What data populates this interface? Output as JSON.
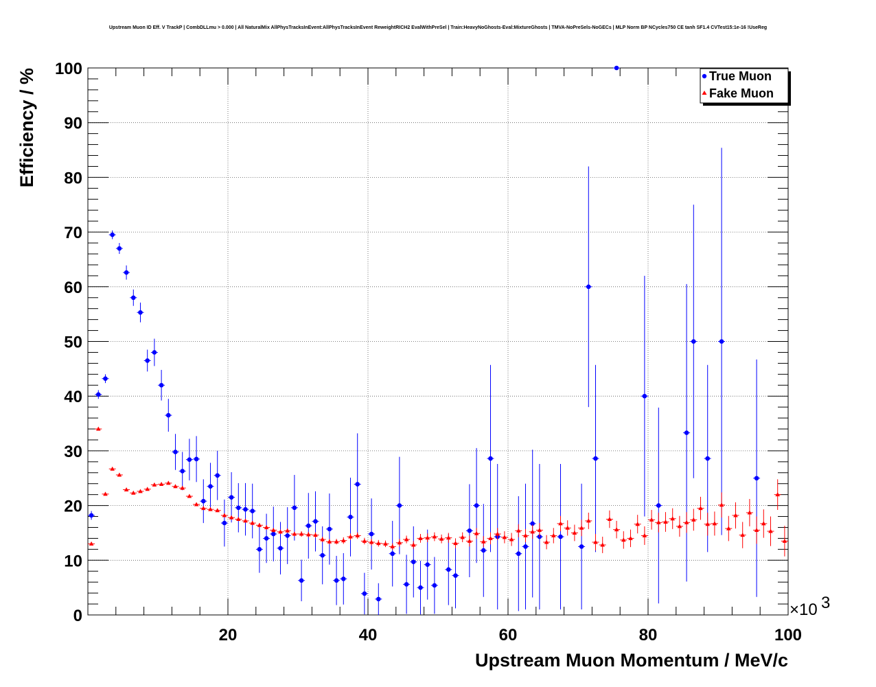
{
  "chart_data": {
    "type": "scatter",
    "title": "Upstream Muon ID Eff. V TrackP | CombDLLmu > 0.000 | All NaturalMix AllPhysTracksInEvent:AllPhysTracksInEvent ReweightRICH2 EvalWithPreSel | Train:HeavyNoGhosts-Eval:MixtureGhosts | TMVA-NoPreSels-NoGECs | MLP Norm BP NCycles750 CE tanh SF1.4 CVTest15:1e-16 !UseReg",
    "xlabel": "Upstream Muon Momentum / MeV/c",
    "ylabel": "Efficiency / %",
    "x_multiplier_label": "×10",
    "x_multiplier_exp": "3",
    "xlim": [
      0,
      100
    ],
    "ylim": [
      0,
      100
    ],
    "x_ticks": [
      20,
      40,
      60,
      80,
      100
    ],
    "y_ticks": [
      0,
      10,
      20,
      30,
      40,
      50,
      60,
      70,
      80,
      90,
      100
    ],
    "grid": true,
    "legend_position": "top-right",
    "series": [
      {
        "name": "True Muon",
        "color": "#0000ff",
        "marker": "circle",
        "points": [
          {
            "x": 0.5,
            "y": 18.2,
            "e": 0.8
          },
          {
            "x": 1.5,
            "y": 40.3,
            "e": 0.8
          },
          {
            "x": 2.5,
            "y": 43.2,
            "e": 0.8
          },
          {
            "x": 3.5,
            "y": 69.5,
            "e": 0.8
          },
          {
            "x": 4.5,
            "y": 67.0,
            "e": 1.0
          },
          {
            "x": 5.5,
            "y": 62.6,
            "e": 1.3
          },
          {
            "x": 6.5,
            "y": 58.0,
            "e": 1.5
          },
          {
            "x": 7.5,
            "y": 55.3,
            "e": 1.8
          },
          {
            "x": 8.5,
            "y": 46.5,
            "e": 2.0
          },
          {
            "x": 9.5,
            "y": 48.0,
            "e": 2.5
          },
          {
            "x": 10.5,
            "y": 42.0,
            "e": 2.8
          },
          {
            "x": 11.5,
            "y": 36.5,
            "e": 3.0
          },
          {
            "x": 12.5,
            "y": 29.8,
            "e": 3.3
          },
          {
            "x": 13.5,
            "y": 26.3,
            "e": 3.5
          },
          {
            "x": 14.5,
            "y": 28.4,
            "e": 3.8
          },
          {
            "x": 15.5,
            "y": 28.5,
            "e": 4.2
          },
          {
            "x": 16.5,
            "y": 20.8,
            "e": 4.0
          },
          {
            "x": 17.5,
            "y": 23.5,
            "e": 4.3
          },
          {
            "x": 18.5,
            "y": 25.5,
            "e": 4.5
          },
          {
            "x": 19.5,
            "y": 16.8,
            "e": 4.3
          },
          {
            "x": 20.5,
            "y": 21.5,
            "e": 4.6
          },
          {
            "x": 21.5,
            "y": 19.6,
            "e": 4.5
          },
          {
            "x": 22.5,
            "y": 19.3,
            "e": 4.8
          },
          {
            "x": 23.5,
            "y": 19.0,
            "e": 5.0
          },
          {
            "x": 24.5,
            "y": 12.0,
            "e": 4.3
          },
          {
            "x": 25.5,
            "y": 14.0,
            "e": 4.5
          },
          {
            "x": 26.5,
            "y": 14.8,
            "e": 5.0
          },
          {
            "x": 27.5,
            "y": 12.2,
            "e": 4.8
          },
          {
            "x": 28.5,
            "y": 14.5,
            "e": 5.2
          },
          {
            "x": 29.5,
            "y": 19.6,
            "e": 6.0
          },
          {
            "x": 30.5,
            "y": 6.3,
            "e": 3.8
          },
          {
            "x": 31.5,
            "y": 16.3,
            "e": 6.0
          },
          {
            "x": 32.5,
            "y": 17.1,
            "e": 5.5
          },
          {
            "x": 33.5,
            "y": 10.9,
            "e": 5.3
          },
          {
            "x": 34.5,
            "y": 15.7,
            "e": 6.5
          },
          {
            "x": 35.5,
            "y": 6.3,
            "e": 4.5
          },
          {
            "x": 36.5,
            "y": 6.6,
            "e": 4.7
          },
          {
            "x": 37.5,
            "y": 17.9,
            "e": 7.2
          },
          {
            "x": 38.5,
            "y": 23.9,
            "e": 9.3
          },
          {
            "x": 39.5,
            "y": 3.9,
            "e": 3.8
          },
          {
            "x": 40.5,
            "y": 14.8,
            "e": 6.5
          },
          {
            "x": 41.5,
            "y": 2.9,
            "e": 2.9
          },
          {
            "x": 43.5,
            "y": 11.2,
            "e": 6.0
          },
          {
            "x": 44.5,
            "y": 20.0,
            "e": 8.9
          },
          {
            "x": 45.5,
            "y": 5.6,
            "e": 5.4
          },
          {
            "x": 46.5,
            "y": 9.7,
            "e": 6.5
          },
          {
            "x": 47.5,
            "y": 5.0,
            "e": 4.9
          },
          {
            "x": 48.5,
            "y": 9.2,
            "e": 6.4
          },
          {
            "x": 49.5,
            "y": 5.4,
            "e": 5.2
          },
          {
            "x": 51.5,
            "y": 8.3,
            "e": 6.5
          },
          {
            "x": 52.5,
            "y": 7.2,
            "e": 6.0
          },
          {
            "x": 54.5,
            "y": 15.4,
            "e": 8.5
          },
          {
            "x": 55.5,
            "y": 20.0,
            "e": 10.5
          },
          {
            "x": 56.5,
            "y": 11.8,
            "e": 8.5
          },
          {
            "x": 57.5,
            "y": 28.6,
            "e": 17.1
          },
          {
            "x": 58.5,
            "y": 14.3,
            "e": 13.3
          },
          {
            "x": 61.5,
            "y": 11.2,
            "e": 10.5
          },
          {
            "x": 62.5,
            "y": 12.5,
            "e": 11.5
          },
          {
            "x": 63.5,
            "y": 16.7,
            "e": 13.5
          },
          {
            "x": 64.5,
            "y": 14.3,
            "e": 13.3
          },
          {
            "x": 67.5,
            "y": 14.3,
            "e": 13.3
          },
          {
            "x": 70.5,
            "y": 12.5,
            "e": 11.5
          },
          {
            "x": 71.5,
            "y": 60.0,
            "e": 22.0
          },
          {
            "x": 72.5,
            "y": 28.6,
            "e": 17.1
          },
          {
            "x": 75.5,
            "y": 100.0,
            "e": 0.0
          },
          {
            "x": 79.5,
            "y": 40.0,
            "e": 22.0
          },
          {
            "x": 81.5,
            "y": 20.0,
            "e": 17.9
          },
          {
            "x": 85.5,
            "y": 33.3,
            "e": 27.2
          },
          {
            "x": 86.5,
            "y": 50.0,
            "e": 25.0
          },
          {
            "x": 88.5,
            "y": 28.6,
            "e": 17.1
          },
          {
            "x": 90.5,
            "y": 50.0,
            "e": 35.4
          },
          {
            "x": 95.5,
            "y": 25.0,
            "e": 21.7
          }
        ]
      },
      {
        "name": "Fake Muon",
        "color": "#ff0000",
        "marker": "triangle",
        "points": [
          {
            "x": 0.5,
            "y": 13.0,
            "e": 0.2
          },
          {
            "x": 1.5,
            "y": 34.0,
            "e": 0.2
          },
          {
            "x": 2.5,
            "y": 22.1,
            "e": 0.2
          },
          {
            "x": 3.5,
            "y": 26.7,
            "e": 0.2
          },
          {
            "x": 4.5,
            "y": 25.6,
            "e": 0.2
          },
          {
            "x": 5.5,
            "y": 22.9,
            "e": 0.2
          },
          {
            "x": 6.5,
            "y": 22.3,
            "e": 0.2
          },
          {
            "x": 7.5,
            "y": 22.6,
            "e": 0.2
          },
          {
            "x": 8.5,
            "y": 23.0,
            "e": 0.2
          },
          {
            "x": 9.5,
            "y": 23.8,
            "e": 0.3
          },
          {
            "x": 10.5,
            "y": 23.9,
            "e": 0.3
          },
          {
            "x": 11.5,
            "y": 24.1,
            "e": 0.3
          },
          {
            "x": 12.5,
            "y": 23.5,
            "e": 0.3
          },
          {
            "x": 13.5,
            "y": 23.2,
            "e": 0.3
          },
          {
            "x": 14.5,
            "y": 21.7,
            "e": 0.3
          },
          {
            "x": 15.5,
            "y": 20.2,
            "e": 0.3
          },
          {
            "x": 16.5,
            "y": 19.5,
            "e": 0.3
          },
          {
            "x": 17.5,
            "y": 19.3,
            "e": 0.3
          },
          {
            "x": 18.5,
            "y": 19.1,
            "e": 0.3
          },
          {
            "x": 19.5,
            "y": 18.2,
            "e": 0.3
          },
          {
            "x": 20.5,
            "y": 17.8,
            "e": 0.3
          },
          {
            "x": 21.5,
            "y": 17.5,
            "e": 0.3
          },
          {
            "x": 22.5,
            "y": 17.2,
            "e": 0.3
          },
          {
            "x": 23.5,
            "y": 16.8,
            "e": 0.4
          },
          {
            "x": 24.5,
            "y": 16.4,
            "e": 0.4
          },
          {
            "x": 25.5,
            "y": 16.0,
            "e": 0.4
          },
          {
            "x": 26.5,
            "y": 15.5,
            "e": 0.4
          },
          {
            "x": 27.5,
            "y": 15.2,
            "e": 0.4
          },
          {
            "x": 28.5,
            "y": 15.4,
            "e": 0.4
          },
          {
            "x": 29.5,
            "y": 14.8,
            "e": 0.4
          },
          {
            "x": 30.5,
            "y": 14.8,
            "e": 0.5
          },
          {
            "x": 31.5,
            "y": 14.7,
            "e": 0.5
          },
          {
            "x": 32.5,
            "y": 14.6,
            "e": 0.5
          },
          {
            "x": 33.5,
            "y": 13.8,
            "e": 0.5
          },
          {
            "x": 34.5,
            "y": 13.4,
            "e": 0.5
          },
          {
            "x": 35.5,
            "y": 13.4,
            "e": 0.5
          },
          {
            "x": 36.5,
            "y": 13.6,
            "e": 0.6
          },
          {
            "x": 37.5,
            "y": 14.3,
            "e": 0.6
          },
          {
            "x": 38.5,
            "y": 14.5,
            "e": 0.6
          },
          {
            "x": 39.5,
            "y": 13.5,
            "e": 0.6
          },
          {
            "x": 40.5,
            "y": 13.3,
            "e": 0.6
          },
          {
            "x": 41.5,
            "y": 13.1,
            "e": 0.6
          },
          {
            "x": 42.5,
            "y": 13.0,
            "e": 0.6
          },
          {
            "x": 43.5,
            "y": 12.5,
            "e": 0.6
          },
          {
            "x": 44.5,
            "y": 13.2,
            "e": 0.7
          },
          {
            "x": 45.5,
            "y": 13.8,
            "e": 0.7
          },
          {
            "x": 46.5,
            "y": 12.8,
            "e": 0.7
          },
          {
            "x": 47.5,
            "y": 14.0,
            "e": 0.8
          },
          {
            "x": 48.5,
            "y": 14.1,
            "e": 0.8
          },
          {
            "x": 49.5,
            "y": 14.3,
            "e": 0.8
          },
          {
            "x": 50.5,
            "y": 13.9,
            "e": 0.8
          },
          {
            "x": 51.5,
            "y": 14.1,
            "e": 0.9
          },
          {
            "x": 52.5,
            "y": 13.1,
            "e": 0.9
          },
          {
            "x": 53.5,
            "y": 14.2,
            "e": 0.9
          },
          {
            "x": 54.5,
            "y": 13.5,
            "e": 1.0
          },
          {
            "x": 55.5,
            "y": 14.9,
            "e": 1.0
          },
          {
            "x": 56.5,
            "y": 13.4,
            "e": 1.0
          },
          {
            "x": 57.5,
            "y": 14.0,
            "e": 1.1
          },
          {
            "x": 58.5,
            "y": 14.8,
            "e": 1.1
          },
          {
            "x": 59.5,
            "y": 14.2,
            "e": 1.1
          },
          {
            "x": 60.5,
            "y": 13.8,
            "e": 1.2
          },
          {
            "x": 61.5,
            "y": 15.4,
            "e": 1.2
          },
          {
            "x": 62.5,
            "y": 14.5,
            "e": 1.2
          },
          {
            "x": 63.5,
            "y": 15.2,
            "e": 1.3
          },
          {
            "x": 64.5,
            "y": 15.5,
            "e": 1.3
          },
          {
            "x": 65.5,
            "y": 13.3,
            "e": 1.3
          },
          {
            "x": 66.5,
            "y": 14.5,
            "e": 1.4
          },
          {
            "x": 67.5,
            "y": 16.7,
            "e": 1.4
          },
          {
            "x": 68.5,
            "y": 15.9,
            "e": 1.4
          },
          {
            "x": 69.5,
            "y": 15.0,
            "e": 1.5
          },
          {
            "x": 70.5,
            "y": 15.9,
            "e": 1.5
          },
          {
            "x": 71.5,
            "y": 17.2,
            "e": 1.5
          },
          {
            "x": 72.5,
            "y": 13.3,
            "e": 1.5
          },
          {
            "x": 73.5,
            "y": 12.8,
            "e": 1.5
          },
          {
            "x": 74.5,
            "y": 17.5,
            "e": 1.6
          },
          {
            "x": 75.5,
            "y": 15.6,
            "e": 1.6
          },
          {
            "x": 76.5,
            "y": 13.7,
            "e": 1.6
          },
          {
            "x": 77.5,
            "y": 14.0,
            "e": 1.6
          },
          {
            "x": 78.5,
            "y": 16.6,
            "e": 1.7
          },
          {
            "x": 79.5,
            "y": 14.5,
            "e": 1.7
          },
          {
            "x": 80.5,
            "y": 17.4,
            "e": 1.8
          },
          {
            "x": 81.5,
            "y": 16.9,
            "e": 1.8
          },
          {
            "x": 82.5,
            "y": 17.0,
            "e": 1.8
          },
          {
            "x": 83.5,
            "y": 17.6,
            "e": 1.9
          },
          {
            "x": 84.5,
            "y": 16.2,
            "e": 1.9
          },
          {
            "x": 85.5,
            "y": 16.9,
            "e": 1.9
          },
          {
            "x": 86.5,
            "y": 17.4,
            "e": 2.0
          },
          {
            "x": 87.5,
            "y": 19.5,
            "e": 2.1
          },
          {
            "x": 88.5,
            "y": 16.6,
            "e": 2.1
          },
          {
            "x": 89.5,
            "y": 16.7,
            "e": 2.2
          },
          {
            "x": 90.5,
            "y": 20.1,
            "e": 2.3
          },
          {
            "x": 91.5,
            "y": 15.8,
            "e": 2.3
          },
          {
            "x": 92.5,
            "y": 18.2,
            "e": 2.4
          },
          {
            "x": 93.5,
            "y": 14.6,
            "e": 2.4
          },
          {
            "x": 94.5,
            "y": 18.7,
            "e": 2.5
          },
          {
            "x": 95.5,
            "y": 15.5,
            "e": 2.5
          },
          {
            "x": 96.5,
            "y": 16.7,
            "e": 2.6
          },
          {
            "x": 97.5,
            "y": 15.3,
            "e": 2.7
          },
          {
            "x": 98.5,
            "y": 22.0,
            "e": 2.8
          },
          {
            "x": 99.5,
            "y": 13.5,
            "e": 2.8
          }
        ]
      }
    ]
  }
}
